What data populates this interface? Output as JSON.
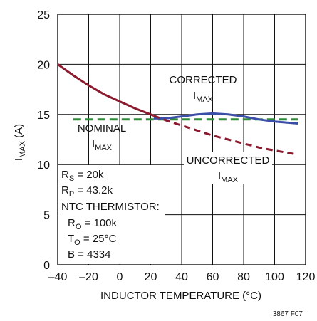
{
  "chart_data": {
    "type": "line",
    "xlabel": "INDUCTOR TEMPERATURE (°C)",
    "ylabel": {
      "main": "I",
      "sub": "MAX",
      "unit": " (A)"
    },
    "xlim": [
      -40,
      120
    ],
    "ylim": [
      0,
      25
    ],
    "x_ticks": [
      "–40",
      "–20",
      "0",
      "20",
      "40",
      "60",
      "80",
      "100",
      "120"
    ],
    "y_ticks": [
      "0",
      "5",
      "10",
      "15",
      "20",
      "25"
    ],
    "grid": true,
    "series": [
      {
        "label_lines": [
          {
            "text": "NOMINAL"
          },
          {
            "main": "I",
            "sub": "MAX"
          }
        ],
        "color": "#2e8b3a",
        "style": "dashed",
        "x": [
          -30,
          115
        ],
        "y": [
          14.5,
          14.5
        ]
      },
      {
        "label_lines": [
          {
            "text": "CORRECTED"
          },
          {
            "main": "I",
            "sub": "MAX"
          }
        ],
        "color": "#3b4fa8",
        "style": "solid",
        "x": [
          22,
          30,
          40,
          50,
          60,
          70,
          80,
          90,
          100,
          115
        ],
        "y": [
          14.6,
          14.62,
          14.8,
          15.0,
          15.1,
          15.0,
          14.8,
          14.5,
          14.3,
          14.1
        ]
      },
      {
        "label_lines": [
          {
            "text": "UNCORRECTED"
          },
          {
            "main": "I",
            "sub": "MAX"
          }
        ],
        "color": "#8b1a2e",
        "style": "solid-then-dashed",
        "x": [
          -40,
          -30,
          -20,
          -10,
          0,
          10,
          20,
          30,
          40,
          50,
          60,
          70,
          80,
          90,
          100,
          115
        ],
        "y": [
          20.0,
          18.9,
          17.9,
          17.0,
          16.3,
          15.6,
          15.0,
          14.4,
          13.9,
          13.4,
          12.9,
          12.5,
          12.1,
          11.7,
          11.4,
          11.0
        ],
        "dashed_from_x": 22
      }
    ],
    "annotation_lines": [
      {
        "main": "R",
        "sub": "S",
        "rest": " = 20k"
      },
      {
        "main": "R",
        "sub": "P",
        "rest": " = 43.2k"
      },
      {
        "main": "NTC THERMISTOR:",
        "sub": "",
        "rest": ""
      },
      {
        "main": "R",
        "sub": "O",
        "rest": " = 100k"
      },
      {
        "main": "T",
        "sub": "O",
        "rest": " = 25°C"
      },
      {
        "main": "B = 4334",
        "sub": "",
        "rest": ""
      }
    ]
  },
  "figure_id": "3867 F07"
}
